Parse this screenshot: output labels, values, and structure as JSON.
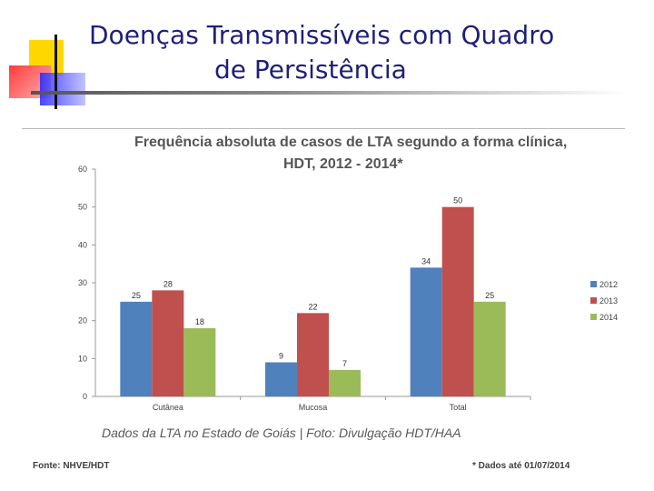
{
  "slide": {
    "title_line1": "Doenças Transmissíveis com Quadro",
    "title_line2": "de Persistência",
    "caption": "Dados da LTA no Estado de Goiás | Foto: Divulgação HDT/HAA",
    "source_note": "Fonte: NHVE/HDT",
    "date_note": "* Dados até 01/07/2014"
  },
  "colors": {
    "title": "#1f1f7a",
    "deco_yellow": "#ffd700",
    "deco_red": "#ff4b4b",
    "deco_blue": "#3a3aff"
  },
  "chart_data": {
    "type": "bar",
    "title_line1": "Frequência absoluta de casos de LTA segundo a forma clínica,",
    "title_line2": "HDT,  2012 - 2014*",
    "categories": [
      "Cutânea",
      "Mucosa",
      "Total"
    ],
    "series": [
      {
        "name": "2012",
        "color": "#4f81bd",
        "values": [
          25,
          9,
          34
        ]
      },
      {
        "name": "2013",
        "color": "#c0504d",
        "values": [
          28,
          22,
          50
        ]
      },
      {
        "name": "2014",
        "color": "#9bbb59",
        "values": [
          18,
          7,
          25
        ]
      }
    ],
    "ylim": [
      0,
      60
    ],
    "yticks": [
      0,
      10,
      20,
      30,
      40,
      50,
      60
    ],
    "xlabel": "",
    "ylabel": "",
    "legend": "right",
    "grid": false
  }
}
